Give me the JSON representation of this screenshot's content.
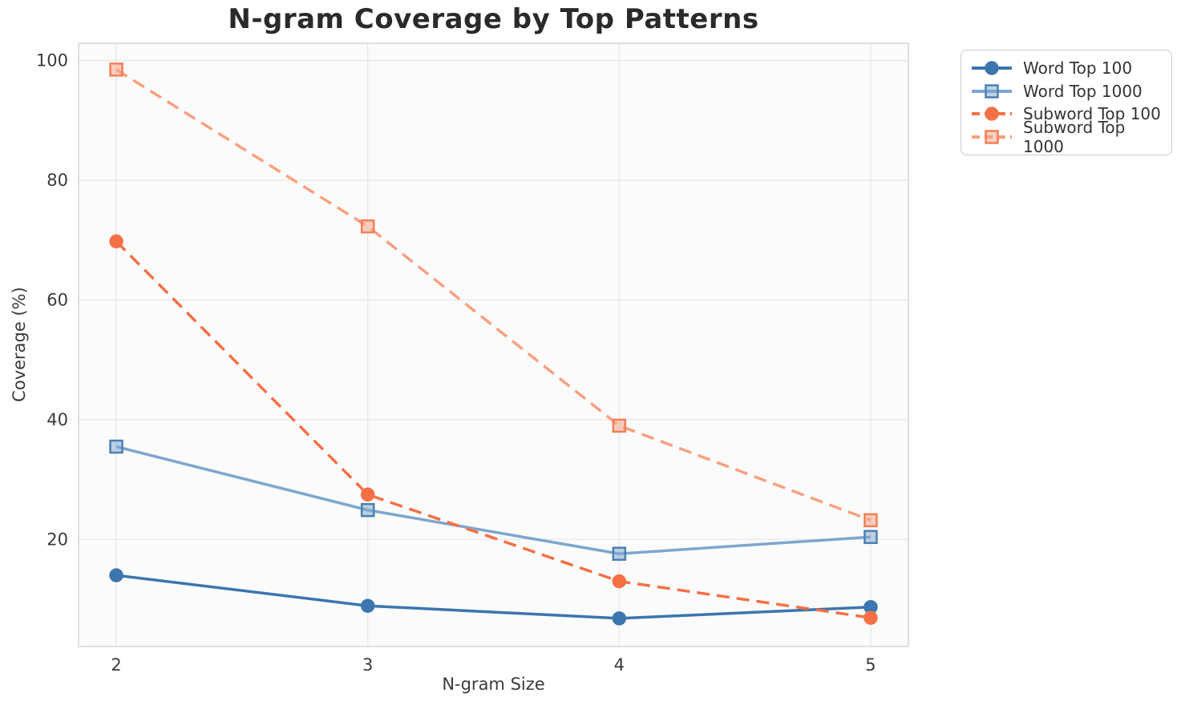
{
  "chart_data": {
    "type": "line",
    "title": "N-gram Coverage by Top Patterns",
    "xlabel": "N-gram Size",
    "ylabel": "Coverage (%)",
    "x": [
      2,
      3,
      4,
      5
    ],
    "xticks": [
      2,
      3,
      4,
      5
    ],
    "yticks": [
      20,
      40,
      60,
      80,
      100
    ],
    "xlim": [
      1.85,
      5.15
    ],
    "ylim": [
      2.1,
      102.9
    ],
    "grid": true,
    "legend_position": "upper-right-outside",
    "series": [
      {
        "id": "word-top-100",
        "name": "Word Top 100",
        "values": [
          14.0,
          8.9,
          6.8,
          8.7
        ],
        "color": "#3B76AE",
        "marker_edge": "#3B76AE",
        "line": "solid",
        "marker": "circle"
      },
      {
        "id": "word-top-1000",
        "name": "Word Top 1000",
        "values": [
          35.5,
          24.9,
          17.6,
          20.4
        ],
        "color": "#7EA6CD",
        "marker_edge": "#4C80B0",
        "line": "solid",
        "marker": "square"
      },
      {
        "id": "subword-top-100",
        "name": "Subword Top 100",
        "values": [
          69.8,
          27.5,
          13.0,
          6.9
        ],
        "color": "#F57044",
        "marker_edge": "#F57044",
        "line": "dashed",
        "marker": "circle"
      },
      {
        "id": "subword-top-1000",
        "name": "Subword Top 1000",
        "values": [
          98.5,
          72.3,
          39.0,
          23.2
        ],
        "color": "#F9A07F",
        "marker_edge": "#F67E55",
        "line": "dashed",
        "marker": "square"
      }
    ],
    "style": {
      "plot_bg": "#fbfbfc",
      "grid_color": "#e7e7ea",
      "spine_color": "#d6d6da",
      "tick_color": "#3b3b3b",
      "title_color": "#2a2a2a",
      "legend_border": "#cbcbcb",
      "legend_text": "#333333"
    }
  }
}
